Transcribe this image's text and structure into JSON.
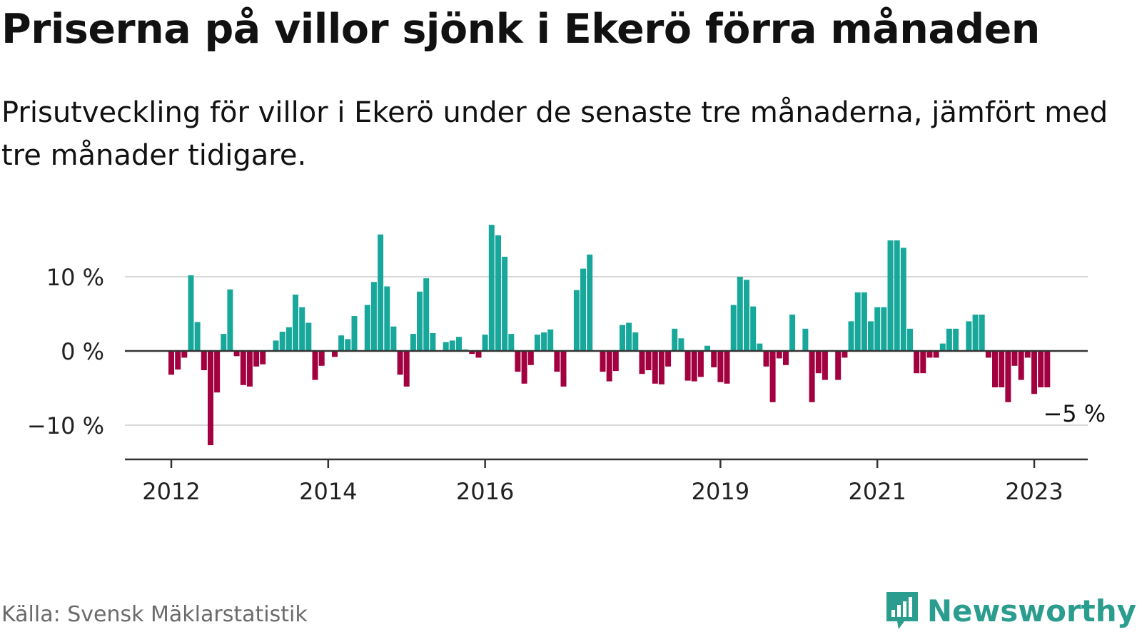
{
  "title": "Priserna på villor sjönk i Ekerö förra månaden",
  "subtitle": "Prisutveckling för villor i Ekerö under de senaste tre månaderna, jämfört med tre månader tidigare.",
  "source": "Källa: Svensk Mäklarstatistik",
  "brand": {
    "name": "Newsworthy",
    "icon": "newsworthy-logo-icon",
    "color": "#2a9d8f"
  },
  "colors": {
    "positive": "#18a89b",
    "negative": "#a3003f",
    "grid": "#d9d9d9",
    "axis": "#333333"
  },
  "chart_data": {
    "type": "bar",
    "unit": "%",
    "x_start": "2012-01",
    "x_end": "2023-05",
    "ylim": [
      -15,
      18
    ],
    "yticks": [
      {
        "value": 10,
        "label": "10 %"
      },
      {
        "value": 0,
        "label": "0 %"
      },
      {
        "value": -10,
        "label": "−10 %"
      }
    ],
    "xticks": [
      {
        "date": "2012-01",
        "label": "2012"
      },
      {
        "date": "2014-01",
        "label": "2014"
      },
      {
        "date": "2016-01",
        "label": "2016"
      },
      {
        "date": "2019-01",
        "label": "2019"
      },
      {
        "date": "2021-01",
        "label": "2021"
      },
      {
        "date": "2023-01",
        "label": "2023"
      }
    ],
    "grid": true,
    "annotation": {
      "date": "2023-03",
      "text": "−5 %"
    },
    "x": [
      "2012-01",
      "2012-02",
      "2012-03",
      "2012-04",
      "2012-05",
      "2012-06",
      "2012-07",
      "2012-08",
      "2012-09",
      "2012-10",
      "2012-11",
      "2012-12",
      "2013-01",
      "2013-02",
      "2013-03",
      "2013-04",
      "2013-05",
      "2013-06",
      "2013-07",
      "2013-08",
      "2013-09",
      "2013-10",
      "2013-11",
      "2013-12",
      "2014-01",
      "2014-02",
      "2014-03",
      "2014-04",
      "2014-05",
      "2014-06",
      "2014-07",
      "2014-08",
      "2014-09",
      "2014-10",
      "2014-11",
      "2014-12",
      "2015-01",
      "2015-02",
      "2015-03",
      "2015-04",
      "2015-05",
      "2015-06",
      "2015-07",
      "2015-08",
      "2015-09",
      "2015-10",
      "2015-11",
      "2015-12",
      "2016-01",
      "2016-02",
      "2016-03",
      "2016-04",
      "2016-05",
      "2016-06",
      "2016-07",
      "2016-08",
      "2016-09",
      "2016-10",
      "2016-11",
      "2016-12",
      "2017-01",
      "2017-02",
      "2017-03",
      "2017-04",
      "2017-05",
      "2017-06",
      "2017-07",
      "2017-08",
      "2017-09",
      "2017-10",
      "2017-11",
      "2017-12",
      "2018-01",
      "2018-02",
      "2018-03",
      "2018-04",
      "2018-05",
      "2018-06",
      "2018-07",
      "2018-08",
      "2018-09",
      "2018-10",
      "2018-11",
      "2018-12",
      "2019-01",
      "2019-02",
      "2019-03",
      "2019-04",
      "2019-05",
      "2019-06",
      "2019-07",
      "2019-08",
      "2019-09",
      "2019-10",
      "2019-11",
      "2019-12",
      "2020-01",
      "2020-02",
      "2020-03",
      "2020-04",
      "2020-05",
      "2020-06",
      "2020-07",
      "2020-08",
      "2020-09",
      "2020-10",
      "2020-11",
      "2020-12",
      "2021-01",
      "2021-02",
      "2021-03",
      "2021-04",
      "2021-05",
      "2021-06",
      "2021-07",
      "2021-08",
      "2021-09",
      "2021-10",
      "2021-11",
      "2021-12",
      "2022-01",
      "2022-02",
      "2022-03",
      "2022-04",
      "2022-05",
      "2022-06",
      "2022-07",
      "2022-08",
      "2022-09",
      "2022-10",
      "2022-11",
      "2022-12",
      "2023-01",
      "2023-02",
      "2023-03"
    ],
    "values": [
      -3.2,
      -2.5,
      -0.9,
      10.2,
      3.9,
      -2.6,
      -12.7,
      -5.6,
      2.3,
      8.3,
      -0.7,
      -4.6,
      -4.8,
      -2.1,
      -1.8,
      0,
      1.4,
      2.6,
      3.2,
      7.6,
      5.9,
      3.8,
      -3.9,
      -2.0,
      0,
      -0.8,
      2.1,
      1.6,
      4.7,
      0,
      6.2,
      9.3,
      15.7,
      8.7,
      3.3,
      -3.2,
      -4.8,
      2.3,
      8.0,
      9.8,
      2.4,
      0,
      1.2,
      1.4,
      1.9,
      0.2,
      -0.4,
      -0.9,
      2.2,
      17.0,
      15.6,
      12.7,
      2.3,
      -2.8,
      -4.4,
      -1.9,
      2.2,
      2.5,
      2.9,
      -2.8,
      -4.8,
      0,
      8.2,
      11.1,
      13.0,
      0,
      -2.8,
      -4.1,
      -2.7,
      3.5,
      3.8,
      2.5,
      -3.1,
      -2.6,
      -4.4,
      -4.5,
      -2.1,
      3.0,
      1.7,
      -4.0,
      -4.1,
      -3.5,
      0.7,
      -2.2,
      -4.2,
      -4.4,
      6.2,
      10.0,
      9.6,
      6.0,
      1.0,
      -2.1,
      -6.9,
      -1.0,
      -1.9,
      4.9,
      0,
      3.0,
      -6.9,
      -3.0,
      -3.9,
      0,
      -3.9,
      -0.9,
      4.0,
      7.9,
      7.9,
      4.0,
      5.9,
      5.9,
      14.9,
      14.9,
      13.9,
      3.0,
      -3.0,
      -3.0,
      -0.9,
      -0.9,
      1.0,
      3.0,
      3.0,
      0,
      4.0,
      4.9,
      4.9,
      -0.9,
      -4.9,
      -4.9,
      -6.9,
      -2.0,
      -3.9,
      -0.9,
      -5.8,
      -4.9,
      -4.9
    ]
  }
}
